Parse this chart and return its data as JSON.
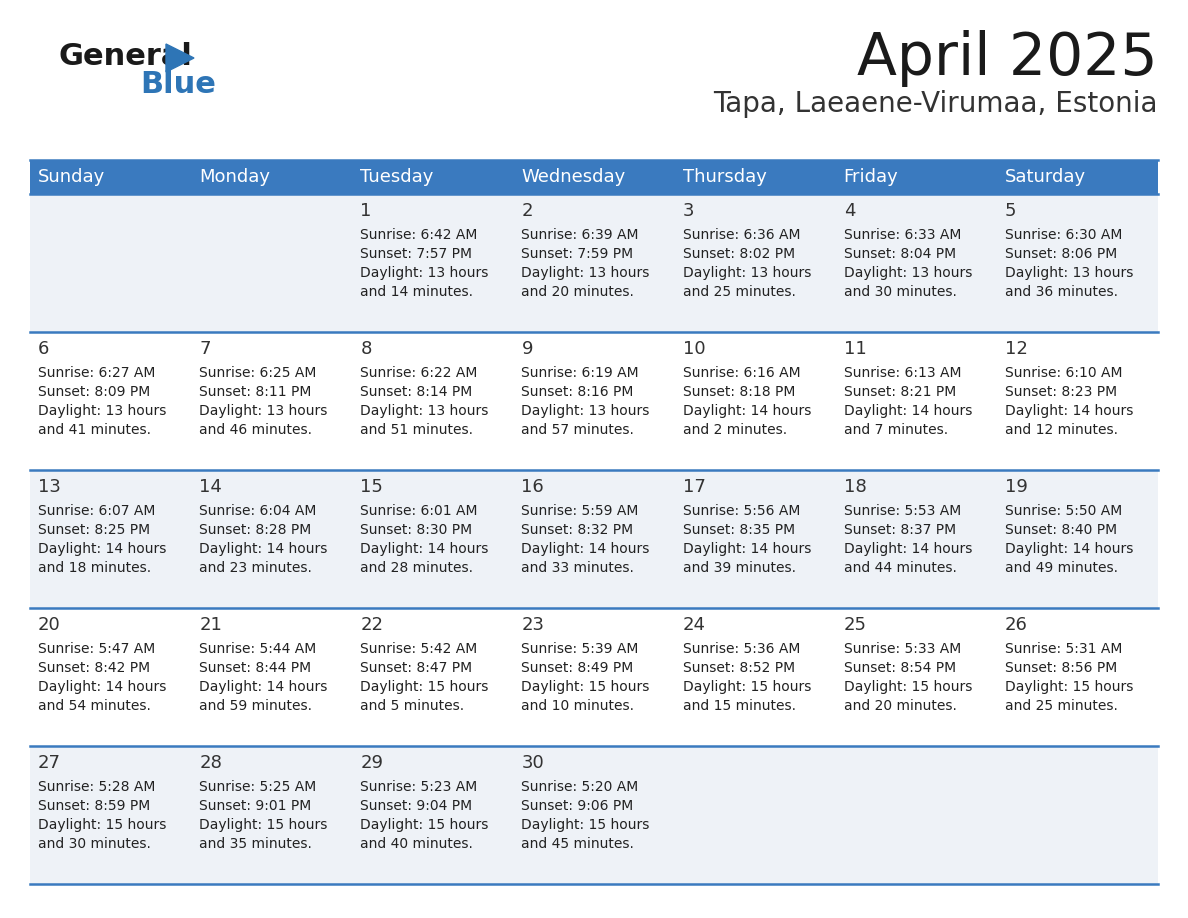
{
  "title": "April 2025",
  "subtitle": "Tapa, Laeaene-Virumaa, Estonia",
  "header_bg": "#3a7abf",
  "header_text": "#ffffff",
  "odd_row_bg": "#eef2f7",
  "even_row_bg": "#ffffff",
  "cell_border": "#3a7abf",
  "day_headers": [
    "Sunday",
    "Monday",
    "Tuesday",
    "Wednesday",
    "Thursday",
    "Friday",
    "Saturday"
  ],
  "title_color": "#1a1a1a",
  "subtitle_color": "#333333",
  "cell_text_color": "#222222",
  "day_num_color": "#333333",
  "logo_black": "#1a1a1a",
  "logo_blue": "#2e75b6",
  "logo_tri": "#2e75b6",
  "weeks": [
    [
      {
        "day": "",
        "sunrise": "",
        "sunset": "",
        "daylight": ""
      },
      {
        "day": "",
        "sunrise": "",
        "sunset": "",
        "daylight": ""
      },
      {
        "day": "1",
        "sunrise": "Sunrise: 6:42 AM",
        "sunset": "Sunset: 7:57 PM",
        "daylight": "Daylight: 13 hours\nand 14 minutes."
      },
      {
        "day": "2",
        "sunrise": "Sunrise: 6:39 AM",
        "sunset": "Sunset: 7:59 PM",
        "daylight": "Daylight: 13 hours\nand 20 minutes."
      },
      {
        "day": "3",
        "sunrise": "Sunrise: 6:36 AM",
        "sunset": "Sunset: 8:02 PM",
        "daylight": "Daylight: 13 hours\nand 25 minutes."
      },
      {
        "day": "4",
        "sunrise": "Sunrise: 6:33 AM",
        "sunset": "Sunset: 8:04 PM",
        "daylight": "Daylight: 13 hours\nand 30 minutes."
      },
      {
        "day": "5",
        "sunrise": "Sunrise: 6:30 AM",
        "sunset": "Sunset: 8:06 PM",
        "daylight": "Daylight: 13 hours\nand 36 minutes."
      }
    ],
    [
      {
        "day": "6",
        "sunrise": "Sunrise: 6:27 AM",
        "sunset": "Sunset: 8:09 PM",
        "daylight": "Daylight: 13 hours\nand 41 minutes."
      },
      {
        "day": "7",
        "sunrise": "Sunrise: 6:25 AM",
        "sunset": "Sunset: 8:11 PM",
        "daylight": "Daylight: 13 hours\nand 46 minutes."
      },
      {
        "day": "8",
        "sunrise": "Sunrise: 6:22 AM",
        "sunset": "Sunset: 8:14 PM",
        "daylight": "Daylight: 13 hours\nand 51 minutes."
      },
      {
        "day": "9",
        "sunrise": "Sunrise: 6:19 AM",
        "sunset": "Sunset: 8:16 PM",
        "daylight": "Daylight: 13 hours\nand 57 minutes."
      },
      {
        "day": "10",
        "sunrise": "Sunrise: 6:16 AM",
        "sunset": "Sunset: 8:18 PM",
        "daylight": "Daylight: 14 hours\nand 2 minutes."
      },
      {
        "day": "11",
        "sunrise": "Sunrise: 6:13 AM",
        "sunset": "Sunset: 8:21 PM",
        "daylight": "Daylight: 14 hours\nand 7 minutes."
      },
      {
        "day": "12",
        "sunrise": "Sunrise: 6:10 AM",
        "sunset": "Sunset: 8:23 PM",
        "daylight": "Daylight: 14 hours\nand 12 minutes."
      }
    ],
    [
      {
        "day": "13",
        "sunrise": "Sunrise: 6:07 AM",
        "sunset": "Sunset: 8:25 PM",
        "daylight": "Daylight: 14 hours\nand 18 minutes."
      },
      {
        "day": "14",
        "sunrise": "Sunrise: 6:04 AM",
        "sunset": "Sunset: 8:28 PM",
        "daylight": "Daylight: 14 hours\nand 23 minutes."
      },
      {
        "day": "15",
        "sunrise": "Sunrise: 6:01 AM",
        "sunset": "Sunset: 8:30 PM",
        "daylight": "Daylight: 14 hours\nand 28 minutes."
      },
      {
        "day": "16",
        "sunrise": "Sunrise: 5:59 AM",
        "sunset": "Sunset: 8:32 PM",
        "daylight": "Daylight: 14 hours\nand 33 minutes."
      },
      {
        "day": "17",
        "sunrise": "Sunrise: 5:56 AM",
        "sunset": "Sunset: 8:35 PM",
        "daylight": "Daylight: 14 hours\nand 39 minutes."
      },
      {
        "day": "18",
        "sunrise": "Sunrise: 5:53 AM",
        "sunset": "Sunset: 8:37 PM",
        "daylight": "Daylight: 14 hours\nand 44 minutes."
      },
      {
        "day": "19",
        "sunrise": "Sunrise: 5:50 AM",
        "sunset": "Sunset: 8:40 PM",
        "daylight": "Daylight: 14 hours\nand 49 minutes."
      }
    ],
    [
      {
        "day": "20",
        "sunrise": "Sunrise: 5:47 AM",
        "sunset": "Sunset: 8:42 PM",
        "daylight": "Daylight: 14 hours\nand 54 minutes."
      },
      {
        "day": "21",
        "sunrise": "Sunrise: 5:44 AM",
        "sunset": "Sunset: 8:44 PM",
        "daylight": "Daylight: 14 hours\nand 59 minutes."
      },
      {
        "day": "22",
        "sunrise": "Sunrise: 5:42 AM",
        "sunset": "Sunset: 8:47 PM",
        "daylight": "Daylight: 15 hours\nand 5 minutes."
      },
      {
        "day": "23",
        "sunrise": "Sunrise: 5:39 AM",
        "sunset": "Sunset: 8:49 PM",
        "daylight": "Daylight: 15 hours\nand 10 minutes."
      },
      {
        "day": "24",
        "sunrise": "Sunrise: 5:36 AM",
        "sunset": "Sunset: 8:52 PM",
        "daylight": "Daylight: 15 hours\nand 15 minutes."
      },
      {
        "day": "25",
        "sunrise": "Sunrise: 5:33 AM",
        "sunset": "Sunset: 8:54 PM",
        "daylight": "Daylight: 15 hours\nand 20 minutes."
      },
      {
        "day": "26",
        "sunrise": "Sunrise: 5:31 AM",
        "sunset": "Sunset: 8:56 PM",
        "daylight": "Daylight: 15 hours\nand 25 minutes."
      }
    ],
    [
      {
        "day": "27",
        "sunrise": "Sunrise: 5:28 AM",
        "sunset": "Sunset: 8:59 PM",
        "daylight": "Daylight: 15 hours\nand 30 minutes."
      },
      {
        "day": "28",
        "sunrise": "Sunrise: 5:25 AM",
        "sunset": "Sunset: 9:01 PM",
        "daylight": "Daylight: 15 hours\nand 35 minutes."
      },
      {
        "day": "29",
        "sunrise": "Sunrise: 5:23 AM",
        "sunset": "Sunset: 9:04 PM",
        "daylight": "Daylight: 15 hours\nand 40 minutes."
      },
      {
        "day": "30",
        "sunrise": "Sunrise: 5:20 AM",
        "sunset": "Sunset: 9:06 PM",
        "daylight": "Daylight: 15 hours\nand 45 minutes."
      },
      {
        "day": "",
        "sunrise": "",
        "sunset": "",
        "daylight": ""
      },
      {
        "day": "",
        "sunrise": "",
        "sunset": "",
        "daylight": ""
      },
      {
        "day": "",
        "sunrise": "",
        "sunset": "",
        "daylight": ""
      }
    ]
  ]
}
